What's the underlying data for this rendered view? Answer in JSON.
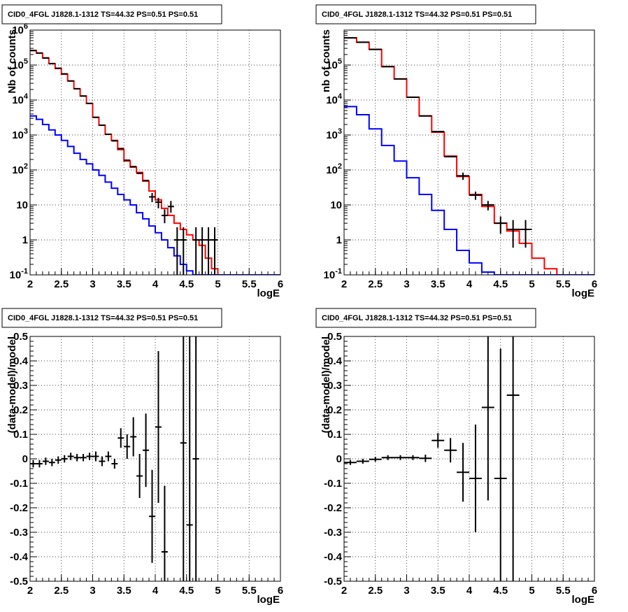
{
  "chart_data": [
    {
      "type": "histogram",
      "title": "CID0_4FGL J1828.1-1312 TS=44.32 PS=0.51 PS=0.51",
      "xlabel": "logE",
      "ylabel": "Nb of counts",
      "xlim": [
        2,
        6
      ],
      "ylim": [
        0.1,
        1000000
      ],
      "yscale": "log",
      "grid": true,
      "x_ticks": [
        "2",
        "2.5",
        "3",
        "3.5",
        "4",
        "4.5",
        "5",
        "5.5",
        "6"
      ],
      "y_ticks": [
        "10^-1",
        "1",
        "10",
        "10^2",
        "10^3",
        "10^4",
        "10^5",
        "10^6"
      ],
      "series": [
        {
          "style": "step",
          "color": "#ff0000",
          "bin_edges": [
            2.0,
            2.1,
            2.2,
            2.3,
            2.4,
            2.5,
            2.6,
            2.7,
            2.8,
            2.9,
            3.0,
            3.1,
            3.2,
            3.3,
            3.4,
            3.5,
            3.6,
            3.7,
            3.8,
            3.9,
            4.0,
            4.1,
            4.2,
            4.3,
            4.4,
            4.5,
            4.6,
            4.7,
            4.8,
            4.9,
            5.0,
            5.1,
            5.2,
            5.3,
            5.4,
            5.5,
            5.6,
            5.7,
            5.8,
            5.9,
            6.0
          ],
          "values": [
            260000,
            220000,
            160000,
            110000,
            80000,
            55000,
            35000,
            21000,
            13000,
            8000,
            3200,
            1900,
            1050,
            700,
            380,
            180,
            120,
            85,
            48,
            25,
            14,
            8,
            5,
            3,
            2,
            1.4,
            1,
            0.7,
            0.3,
            0.15,
            0.1,
            0.1,
            0.1,
            0.1,
            0.1,
            0.1,
            0.1,
            0.1,
            0.1,
            0.1
          ]
        },
        {
          "style": "step",
          "color": "#0000ff",
          "bin_edges": [
            2.0,
            2.1,
            2.2,
            2.3,
            2.4,
            2.5,
            2.6,
            2.7,
            2.8,
            2.9,
            3.0,
            3.1,
            3.2,
            3.3,
            3.4,
            3.5,
            3.6,
            3.7,
            3.8,
            3.9,
            4.0,
            4.1,
            4.2,
            4.3,
            4.4,
            4.5,
            4.6,
            4.7,
            4.8,
            4.9,
            5.0,
            5.1,
            5.2,
            5.3,
            5.4,
            5.5,
            5.6,
            5.7,
            5.8,
            5.9,
            6.0
          ],
          "values": [
            3500,
            2800,
            2000,
            1400,
            1000,
            700,
            470,
            300,
            200,
            150,
            100,
            70,
            45,
            30,
            20,
            14,
            10,
            6,
            4,
            2.5,
            1.6,
            1.0,
            0.6,
            0.35,
            0.2,
            0.13,
            0.1,
            0.1,
            0.1,
            0.1,
            0.1,
            0.1,
            0.1,
            0.1,
            0.1,
            0.1,
            0.1,
            0.1,
            0.1,
            0.1
          ]
        },
        {
          "style": "errorbar",
          "color": "#000000",
          "points": [
            {
              "x": 2.05,
              "y": 260000
            },
            {
              "x": 2.15,
              "y": 220000
            },
            {
              "x": 2.25,
              "y": 158000
            },
            {
              "x": 2.35,
              "y": 110000
            },
            {
              "x": 2.45,
              "y": 81000
            },
            {
              "x": 2.55,
              "y": 56000
            },
            {
              "x": 2.65,
              "y": 35000
            },
            {
              "x": 2.75,
              "y": 21000
            },
            {
              "x": 2.85,
              "y": 13000
            },
            {
              "x": 2.95,
              "y": 8000
            },
            {
              "x": 3.05,
              "y": 3200
            },
            {
              "x": 3.15,
              "y": 1900
            },
            {
              "x": 3.25,
              "y": 1050
            },
            {
              "x": 3.35,
              "y": 680
            },
            {
              "x": 3.45,
              "y": 410
            },
            {
              "x": 3.55,
              "y": 190
            },
            {
              "x": 3.65,
              "y": 125
            },
            {
              "x": 3.75,
              "y": 80
            },
            {
              "x": 3.85,
              "y": 50
            },
            {
              "x": 3.95,
              "y": 17,
              "ylo": 12,
              "yhi": 22
            },
            {
              "x": 4.05,
              "y": 12,
              "ylo": 8,
              "yhi": 16
            },
            {
              "x": 4.15,
              "y": 5,
              "ylo": 3,
              "yhi": 7.5
            },
            {
              "x": 4.25,
              "y": 9,
              "ylo": 6,
              "yhi": 13
            },
            {
              "x": 4.35,
              "y": 1,
              "ylo": 0.1,
              "yhi": 2.3
            },
            {
              "x": 4.45,
              "y": 1,
              "ylo": 0.1,
              "yhi": 2.3
            },
            {
              "x": 4.65,
              "y": 1,
              "ylo": 0.1,
              "yhi": 2.3
            },
            {
              "x": 4.75,
              "y": 1,
              "ylo": 0.1,
              "yhi": 2.3
            },
            {
              "x": 4.85,
              "y": 1,
              "ylo": 0.1,
              "yhi": 2.3
            },
            {
              "x": 4.95,
              "y": 1,
              "ylo": 0.1,
              "yhi": 2.3
            }
          ]
        }
      ]
    },
    {
      "type": "histogram",
      "title": "CID0_4FGL J1828.1-1312 TS=44.32 PS=0.51 PS=0.51",
      "xlabel": "logE",
      "ylabel": "nb of counts",
      "xlim": [
        2,
        6
      ],
      "ylim": [
        0.1,
        1000000
      ],
      "yscale": "log",
      "grid": true,
      "x_ticks": [
        "2",
        "2.5",
        "3",
        "3.5",
        "4",
        "4.5",
        "5",
        "5.5",
        "6"
      ],
      "y_ticks": [
        "10^-1",
        "1",
        "10",
        "10^2",
        "10^3",
        "10^4",
        "10^5"
      ],
      "series": [
        {
          "style": "step",
          "color": "#ff0000",
          "bin_edges": [
            2.0,
            2.2,
            2.4,
            2.6,
            2.8,
            3.0,
            3.2,
            3.4,
            3.6,
            3.8,
            4.0,
            4.2,
            4.4,
            4.6,
            4.8,
            5.0,
            5.2,
            5.4,
            5.6,
            5.8,
            6.0
          ],
          "values": [
            600000,
            450000,
            280000,
            90000,
            40000,
            12000,
            3500,
            1200,
            250,
            65,
            20,
            9,
            3,
            1.8,
            0.8,
            0.3,
            0.15,
            0.1,
            0.1,
            0.1
          ]
        },
        {
          "style": "step",
          "color": "#0000ff",
          "bin_edges": [
            2.0,
            2.2,
            2.4,
            2.6,
            2.8,
            3.0,
            3.2,
            3.4,
            3.6,
            3.8,
            4.0,
            4.2,
            4.4,
            4.6,
            4.8,
            5.0,
            5.2,
            5.4,
            5.6,
            5.8,
            6.0
          ],
          "values": [
            6500,
            3800,
            1500,
            500,
            180,
            60,
            20,
            7,
            2,
            0.5,
            0.22,
            0.12,
            0.1,
            0.1,
            0.1,
            0.1,
            0.1,
            0.1,
            0.1,
            0.1
          ]
        },
        {
          "style": "errorbar",
          "color": "#000000",
          "points": [
            {
              "x": 2.1,
              "y": 600000
            },
            {
              "x": 2.3,
              "y": 450000
            },
            {
              "x": 2.5,
              "y": 280000
            },
            {
              "x": 2.7,
              "y": 90000
            },
            {
              "x": 2.9,
              "y": 40000
            },
            {
              "x": 3.1,
              "y": 12000
            },
            {
              "x": 3.3,
              "y": 3500
            },
            {
              "x": 3.5,
              "y": 1250
            },
            {
              "x": 3.7,
              "y": 240
            },
            {
              "x": 3.9,
              "y": 68,
              "ylo": 52,
              "yhi": 84
            },
            {
              "x": 4.1,
              "y": 19,
              "ylo": 14,
              "yhi": 24
            },
            {
              "x": 4.3,
              "y": 10,
              "ylo": 7,
              "yhi": 13
            },
            {
              "x": 4.5,
              "y": 3,
              "ylo": 1.5,
              "yhi": 4.7
            },
            {
              "x": 4.7,
              "y": 2,
              "ylo": 0.6,
              "yhi": 3.7
            },
            {
              "x": 4.9,
              "y": 2,
              "ylo": 0.6,
              "yhi": 3.7
            }
          ]
        }
      ]
    },
    {
      "type": "errorbar",
      "title": "CID0_4FGL J1828.1-1312 TS=44.32 PS=0.51 PS=0.51",
      "xlabel": "logE",
      "ylabel": "(data-model)/model",
      "xlim": [
        2,
        6
      ],
      "ylim": [
        -0.5,
        0.5
      ],
      "grid": true,
      "x_ticks": [
        "2",
        "2.5",
        "3",
        "3.5",
        "4",
        "4.5",
        "5",
        "5.5",
        "6"
      ],
      "y_ticks": [
        "-0.5",
        "-0.4",
        "-0.3",
        "-0.2",
        "-0.1",
        "0",
        "0.1",
        "0.2",
        "0.3",
        "0.4",
        "0.5"
      ],
      "bin_width": 0.1,
      "points": [
        {
          "x": 2.05,
          "y": -0.02,
          "err": 0.015
        },
        {
          "x": 2.15,
          "y": -0.02,
          "err": 0.015
        },
        {
          "x": 2.25,
          "y": -0.01,
          "err": 0.015
        },
        {
          "x": 2.35,
          "y": -0.015,
          "err": 0.015
        },
        {
          "x": 2.45,
          "y": -0.005,
          "err": 0.015
        },
        {
          "x": 2.55,
          "y": 0.0,
          "err": 0.015
        },
        {
          "x": 2.65,
          "y": 0.01,
          "err": 0.015
        },
        {
          "x": 2.75,
          "y": 0.005,
          "err": 0.015
        },
        {
          "x": 2.85,
          "y": 0.005,
          "err": 0.015
        },
        {
          "x": 2.95,
          "y": 0.01,
          "err": 0.015
        },
        {
          "x": 3.05,
          "y": 0.01,
          "err": 0.02
        },
        {
          "x": 3.15,
          "y": -0.01,
          "err": 0.02
        },
        {
          "x": 3.25,
          "y": 0.01,
          "err": 0.02
        },
        {
          "x": 3.35,
          "y": -0.02,
          "err": 0.02
        },
        {
          "x": 3.45,
          "y": 0.085,
          "err": 0.04
        },
        {
          "x": 3.55,
          "y": 0.05,
          "err": 0.05
        },
        {
          "x": 3.65,
          "y": 0.09,
          "err": 0.08
        },
        {
          "x": 3.75,
          "y": -0.07,
          "err": 0.09
        },
        {
          "x": 3.85,
          "y": 0.035,
          "err": 0.15
        },
        {
          "x": 3.95,
          "y": -0.235,
          "err": 0.19
        },
        {
          "x": 4.05,
          "y": 0.13,
          "err": 0.31
        },
        {
          "x": 4.15,
          "y": -0.38,
          "err": 0.27
        },
        {
          "x": 4.45,
          "y": 0.065,
          "err": 1.0
        },
        {
          "x": 4.55,
          "y": -0.27,
          "err": 1.0
        },
        {
          "x": 4.65,
          "y": 0.0,
          "err": 1.0
        }
      ]
    },
    {
      "type": "errorbar",
      "title": "CID0_4FGL J1828.1-1312 TS=44.32 PS=0.51 PS=0.51",
      "xlabel": "logE",
      "ylabel": "(data-model)/model",
      "xlim": [
        2,
        6
      ],
      "ylim": [
        -0.5,
        0.5
      ],
      "grid": true,
      "x_ticks": [
        "2",
        "2.5",
        "3",
        "3.5",
        "4",
        "4.5",
        "5",
        "5.5",
        "6"
      ],
      "y_ticks": [
        "-0.5",
        "-0.4",
        "-0.3",
        "-0.2",
        "-0.1",
        "0",
        "0.1",
        "0.2",
        "0.3",
        "0.4",
        "0.5"
      ],
      "bin_width": 0.2,
      "points": [
        {
          "x": 2.1,
          "y": -0.015,
          "err": 0.01
        },
        {
          "x": 2.3,
          "y": -0.01,
          "err": 0.01
        },
        {
          "x": 2.5,
          "y": -0.002,
          "err": 0.01
        },
        {
          "x": 2.7,
          "y": 0.005,
          "err": 0.01
        },
        {
          "x": 2.9,
          "y": 0.005,
          "err": 0.01
        },
        {
          "x": 3.1,
          "y": 0.005,
          "err": 0.01
        },
        {
          "x": 3.3,
          "y": 0.002,
          "err": 0.015
        },
        {
          "x": 3.5,
          "y": 0.075,
          "err": 0.03
        },
        {
          "x": 3.7,
          "y": 0.035,
          "err": 0.05
        },
        {
          "x": 3.9,
          "y": -0.055,
          "err": 0.12
        },
        {
          "x": 4.1,
          "y": -0.08,
          "err": 0.22
        },
        {
          "x": 4.3,
          "y": 0.21,
          "err": 0.38
        },
        {
          "x": 4.5,
          "y": -0.08,
          "err": 0.53
        },
        {
          "x": 4.7,
          "y": 0.26,
          "err": 0.8
        }
      ]
    }
  ]
}
